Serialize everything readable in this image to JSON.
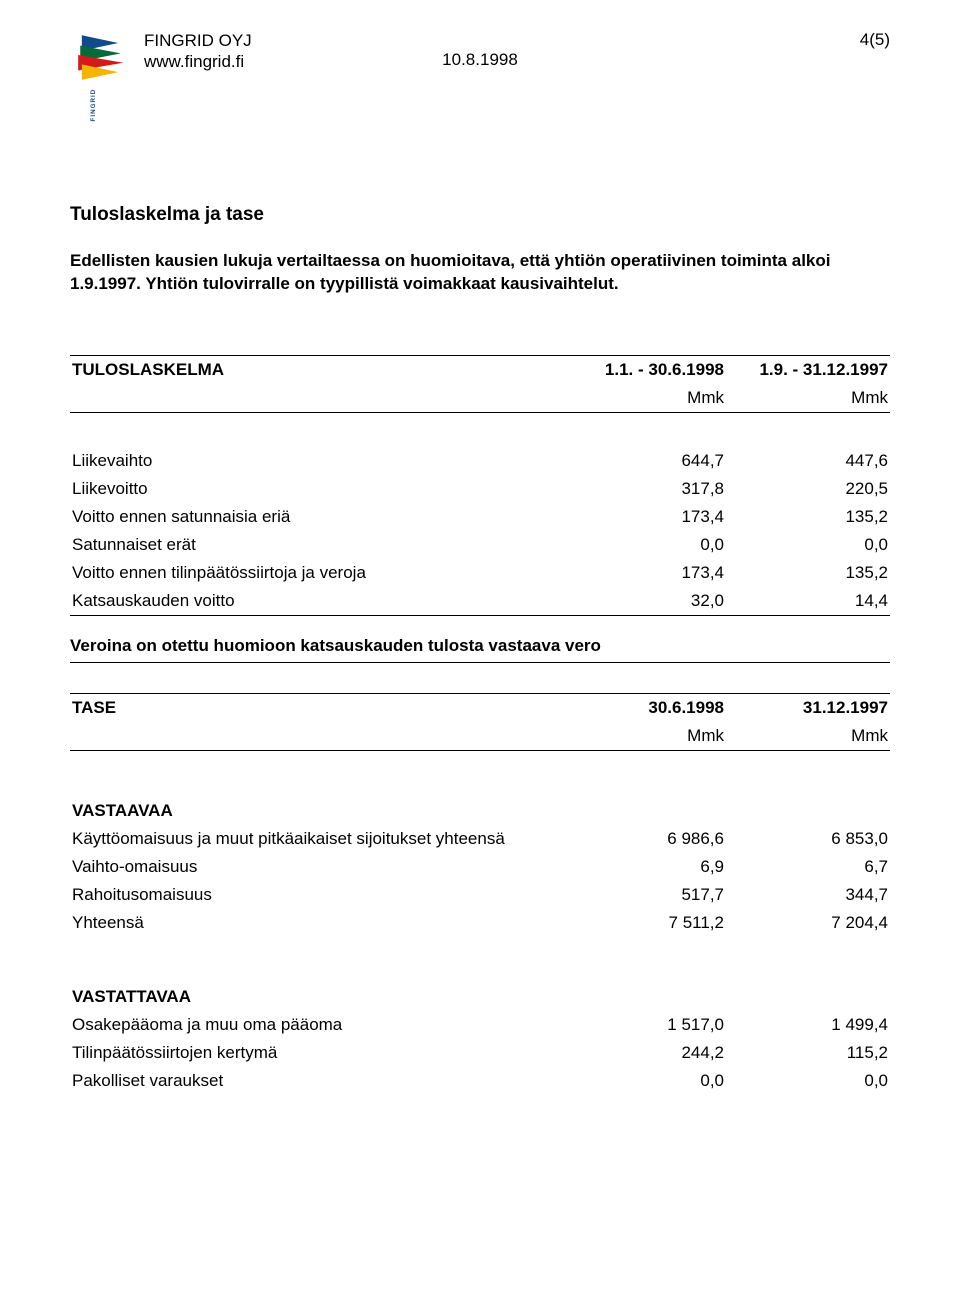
{
  "header": {
    "company": "FINGRID OYJ",
    "website": "www.fingrid.fi",
    "date": "10.8.1998",
    "page_number": "4(5)",
    "brand_vertical": "FINGRID"
  },
  "logo": {
    "colors": {
      "blue": "#124b8c",
      "green": "#066a3b",
      "red": "#d31b1c",
      "yellow": "#f5b400",
      "text": "#124b8c"
    }
  },
  "doc": {
    "title": "Tuloslaskelma ja tase",
    "intro": "Edellisten kausien lukuja vertailtaessa on huomioitava, että yhtiön operatiivinen toiminta alkoi 1.9.1997. Yhtiön tulovirralle on tyypillistä voimakkaat kausivaihtelut."
  },
  "income": {
    "heading": "TULOSLASKELMA",
    "periods": [
      "1.1. - 30.6.1998",
      "1.9. - 31.12.1997"
    ],
    "unit": "Mmk",
    "rows": [
      {
        "label": "Liikevaihto",
        "v1": "644,7",
        "v2": "447,6"
      },
      {
        "label": "Liikevoitto",
        "v1": "317,8",
        "v2": "220,5"
      },
      {
        "label": "Voitto ennen satunnaisia eriä",
        "v1": "173,4",
        "v2": "135,2"
      },
      {
        "label": "Satunnaiset erät",
        "v1": "0,0",
        "v2": "0,0"
      },
      {
        "label": "Voitto ennen tilinpäätössiirtoja ja veroja",
        "v1": "173,4",
        "v2": "135,2"
      },
      {
        "label": "Katsauskauden voitto",
        "v1": "32,0",
        "v2": "14,4"
      }
    ],
    "note": "Veroina on otettu huomioon katsauskauden tulosta vastaava vero"
  },
  "balance": {
    "heading": "TASE",
    "periods": [
      "30.6.1998",
      "31.12.1997"
    ],
    "unit": "Mmk",
    "assets_heading": "VASTAAVAA",
    "assets_rows": [
      {
        "label": "Käyttöomaisuus ja muut pitkäaikaiset sijoitukset yhteensä",
        "v1": "6 986,6",
        "v2": "6 853,0"
      },
      {
        "label": "Vaihto-omaisuus",
        "v1": "6,9",
        "v2": "6,7"
      },
      {
        "label": "Rahoitusomaisuus",
        "v1": "517,7",
        "v2": "344,7"
      },
      {
        "label": "Yhteensä",
        "v1": "7 511,2",
        "v2": "7 204,4"
      }
    ],
    "liab_heading": "VASTATTAVAA",
    "liab_rows": [
      {
        "label": "Osakepääoma ja muu oma pääoma",
        "v1": "1 517,0",
        "v2": "1 499,4"
      },
      {
        "label": "Tilinpäätössiirtojen kertymä",
        "v1": "244,2",
        "v2": "115,2"
      },
      {
        "label": "Pakolliset varaukset",
        "v1": "0,0",
        "v2": "0,0"
      }
    ]
  },
  "table_style": {
    "border_color": "#000000",
    "font_size_pt": 13,
    "col_widths_pct": [
      60,
      20,
      20
    ],
    "number_align": "right"
  }
}
